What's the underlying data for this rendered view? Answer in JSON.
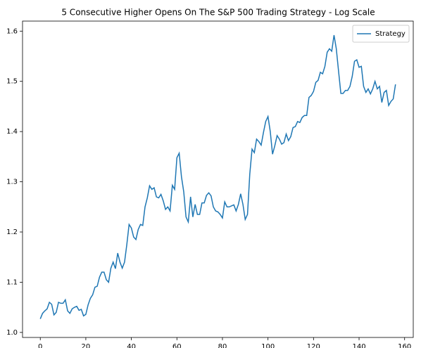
{
  "chart_data": {
    "type": "line",
    "title": "5 Consecutive Higher Opens On The S&P 500 Trading Strategy - Log Scale",
    "x": [
      0,
      1,
      2,
      3,
      4,
      5,
      6,
      7,
      8,
      9,
      10,
      11,
      12,
      13,
      14,
      15,
      16,
      17,
      18,
      19,
      20,
      21,
      22,
      23,
      24,
      25,
      26,
      27,
      28,
      29,
      30,
      31,
      32,
      33,
      34,
      35,
      36,
      37,
      38,
      39,
      40,
      41,
      42,
      43,
      44,
      45,
      46,
      47,
      48,
      49,
      50,
      51,
      52,
      53,
      54,
      55,
      56,
      57,
      58,
      59,
      60,
      61,
      62,
      63,
      64,
      65,
      66,
      67,
      68,
      69,
      70,
      71,
      72,
      73,
      74,
      75,
      76,
      77,
      78,
      79,
      80,
      81,
      82,
      83,
      84,
      85,
      86,
      87,
      88,
      89,
      90,
      91,
      92,
      93,
      94,
      95,
      96,
      97,
      98,
      99,
      100,
      101,
      102,
      103,
      104,
      105,
      106,
      107,
      108,
      109,
      110,
      111,
      112,
      113,
      114,
      115,
      116,
      117,
      118,
      119,
      120,
      121,
      122,
      123,
      124,
      125,
      126,
      127,
      128,
      129,
      130,
      131,
      132,
      133,
      134,
      135,
      136,
      137,
      138,
      139,
      140,
      141,
      142,
      143,
      144,
      145,
      146,
      147,
      148,
      149,
      150,
      151,
      152,
      153,
      154,
      155,
      156
    ],
    "series": [
      {
        "name": "Strategy",
        "color": "#1f77b4",
        "values": [
          1.027,
          1.038,
          1.043,
          1.047,
          1.06,
          1.056,
          1.035,
          1.04,
          1.06,
          1.058,
          1.058,
          1.065,
          1.043,
          1.038,
          1.047,
          1.05,
          1.052,
          1.044,
          1.046,
          1.033,
          1.036,
          1.055,
          1.068,
          1.075,
          1.09,
          1.092,
          1.11,
          1.12,
          1.12,
          1.105,
          1.1,
          1.128,
          1.14,
          1.127,
          1.158,
          1.14,
          1.128,
          1.14,
          1.175,
          1.215,
          1.208,
          1.19,
          1.185,
          1.205,
          1.215,
          1.213,
          1.25,
          1.268,
          1.292,
          1.285,
          1.288,
          1.27,
          1.268,
          1.275,
          1.262,
          1.245,
          1.25,
          1.242,
          1.293,
          1.285,
          1.348,
          1.357,
          1.31,
          1.28,
          1.23,
          1.22,
          1.27,
          1.23,
          1.255,
          1.235,
          1.235,
          1.258,
          1.258,
          1.273,
          1.278,
          1.272,
          1.25,
          1.242,
          1.24,
          1.235,
          1.228,
          1.26,
          1.25,
          1.25,
          1.252,
          1.254,
          1.242,
          1.255,
          1.276,
          1.255,
          1.225,
          1.235,
          1.315,
          1.365,
          1.358,
          1.385,
          1.38,
          1.373,
          1.398,
          1.42,
          1.43,
          1.4,
          1.355,
          1.372,
          1.392,
          1.385,
          1.375,
          1.378,
          1.395,
          1.382,
          1.39,
          1.408,
          1.41,
          1.42,
          1.418,
          1.428,
          1.432,
          1.432,
          1.468,
          1.472,
          1.48,
          1.498,
          1.502,
          1.518,
          1.515,
          1.53,
          1.558,
          1.565,
          1.56,
          1.592,
          1.565,
          1.52,
          1.476,
          1.476,
          1.482,
          1.482,
          1.49,
          1.51,
          1.54,
          1.543,
          1.528,
          1.53,
          1.49,
          1.478,
          1.485,
          1.475,
          1.485,
          1.5,
          1.485,
          1.49,
          1.458,
          1.478,
          1.482,
          1.452,
          1.46,
          1.465,
          1.494
        ]
      }
    ],
    "xlim": [
      -7.8,
      163.8
    ],
    "xticks": [
      0,
      20,
      40,
      60,
      80,
      100,
      120,
      140,
      160
    ],
    "ylim": [
      0.99,
      1.62
    ],
    "yticks": [
      {
        "value": 1,
        "label": "1.0"
      },
      1.1,
      1.2,
      1.3,
      1.4,
      1.5,
      1.6
    ],
    "legend": "upper right"
  }
}
